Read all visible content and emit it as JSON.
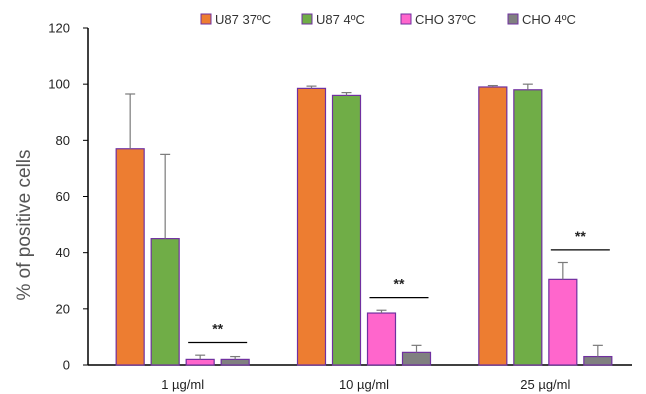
{
  "chart_data": {
    "type": "bar",
    "ylabel": "% of positive cells",
    "xlabel": "",
    "ylim": [
      0,
      120
    ],
    "yticks": [
      "0",
      "20",
      "40",
      "60",
      "80",
      "100",
      "120"
    ],
    "categories": [
      "1 µg/ml",
      "10 µg/ml",
      "25 µg/ml"
    ],
    "legend_position": "top",
    "grid": false,
    "series": [
      {
        "name": "U87 37ºC",
        "color": "#ED7D31",
        "values": [
          77,
          98.5,
          99
        ],
        "errors": [
          19.5,
          0.8,
          0.5
        ]
      },
      {
        "name": "U87 4ºC",
        "color": "#70AD47",
        "values": [
          45,
          96,
          98
        ],
        "errors": [
          30,
          1,
          2
        ]
      },
      {
        "name": "CHO 37ºC",
        "color": "#FF66CC",
        "values": [
          2,
          18.5,
          30.5
        ],
        "errors": [
          1.5,
          1,
          6
        ]
      },
      {
        "name": "CHO 4ºC",
        "color": "#808080",
        "values": [
          2,
          4.5,
          3
        ],
        "errors": [
          1,
          2.5,
          4
        ]
      }
    ],
    "bar_outline_color": "#7030A0",
    "error_bar_color": "#7a7a7a",
    "annotations": [
      {
        "text": "**",
        "category_index": 0,
        "line_y": 8
      },
      {
        "text": "**",
        "category_index": 1,
        "line_y": 24
      },
      {
        "text": "**",
        "category_index": 2,
        "line_y": 41
      }
    ]
  }
}
